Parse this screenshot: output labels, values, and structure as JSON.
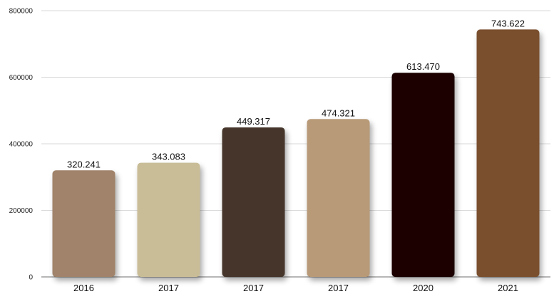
{
  "chart_data": {
    "type": "bar",
    "title": "",
    "xlabel": "",
    "ylabel": "",
    "ylim": [
      0,
      800000
    ],
    "yticks": [
      0,
      200000,
      400000,
      600000,
      800000
    ],
    "ytick_labels": [
      "0",
      "200000",
      "400000",
      "600000",
      "800000"
    ],
    "grid": true,
    "legend": "none",
    "categories": [
      "2016",
      "2017",
      "2017",
      "2017",
      "2020",
      "2021"
    ],
    "values": [
      320241,
      343083,
      449317,
      474321,
      613470,
      743622
    ],
    "data_labels": [
      "320.241",
      "343.083",
      "449.317",
      "474.321",
      "613.470",
      "743.622"
    ],
    "colors": [
      "#A0836B",
      "#C9BD98",
      "#45362A",
      "#B89A78",
      "#1B0605",
      "#7A502F"
    ]
  }
}
